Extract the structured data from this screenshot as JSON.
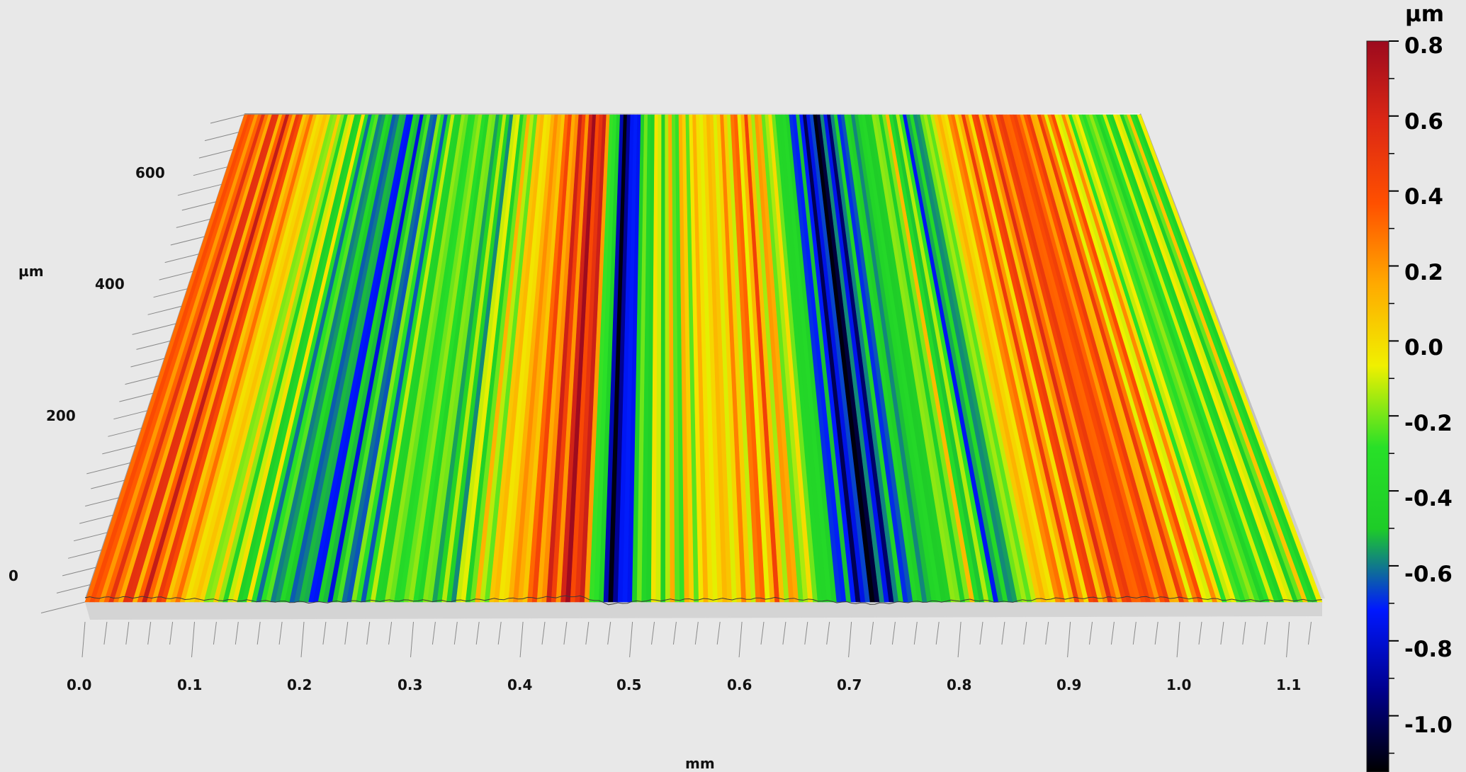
{
  "chart_data": {
    "type": "heatmap",
    "subtype": "3d-surface-topography",
    "title": "",
    "xlabel": "mm",
    "ylabel": "µm",
    "x_ticks": [
      "0.0",
      "0.1",
      "0.2",
      "0.3",
      "0.4",
      "0.5",
      "0.6",
      "0.7",
      "0.8",
      "0.9",
      "1.0",
      "1.1"
    ],
    "x_tick_values": [
      0.0,
      0.1,
      0.2,
      0.3,
      0.4,
      0.5,
      0.6,
      0.7,
      0.8,
      0.9,
      1.0,
      1.1
    ],
    "xlim": [
      0.0,
      1.13
    ],
    "y_ticks": [
      "0",
      "200",
      "400",
      "600"
    ],
    "y_tick_values": [
      0,
      200,
      400,
      600
    ],
    "ylim": [
      0,
      700
    ],
    "colorbar": {
      "unit": "µm",
      "ticks": [
        "0.8",
        "0.6",
        "0.4",
        "0.2",
        "0.0",
        "-0.2",
        "-0.4",
        "-0.6",
        "-0.8",
        "-1.0"
      ],
      "tick_values": [
        0.8,
        0.6,
        0.4,
        0.2,
        0.0,
        -0.2,
        -0.4,
        -0.6,
        -0.8,
        -1.0
      ],
      "zlim": [
        -1.15,
        0.8
      ],
      "colors": [
        "#000000",
        "#00008c",
        "#0018ff",
        "#1ecc28",
        "#28e028",
        "#f0f000",
        "#ffaa00",
        "#ff5000",
        "#dc2814",
        "#9c0a1e"
      ]
    },
    "profile_x_mm": [
      0.0,
      0.03,
      0.06,
      0.09,
      0.12,
      0.15,
      0.18,
      0.21,
      0.24,
      0.27,
      0.3,
      0.33,
      0.36,
      0.39,
      0.42,
      0.45,
      0.48,
      0.51,
      0.54,
      0.57,
      0.6,
      0.63,
      0.66,
      0.69,
      0.72,
      0.75,
      0.78,
      0.81,
      0.84,
      0.87,
      0.9,
      0.93,
      0.96,
      0.99,
      1.02,
      1.05,
      1.08,
      1.11,
      1.13
    ],
    "profile_z_um": [
      0.3,
      0.35,
      0.4,
      0.1,
      -0.15,
      -0.3,
      -0.5,
      -0.65,
      -0.45,
      -0.3,
      -0.25,
      -0.4,
      -0.1,
      0.1,
      0.35,
      0.65,
      -1.05,
      -0.3,
      -0.1,
      0.0,
      0.05,
      0.2,
      -0.1,
      -0.6,
      -0.95,
      -0.55,
      -0.45,
      -0.15,
      -0.6,
      0.0,
      0.2,
      0.3,
      0.4,
      0.3,
      0.15,
      -0.2,
      -0.3,
      -0.2,
      -0.25
    ],
    "grid": false,
    "legend": "colorbar-right"
  }
}
